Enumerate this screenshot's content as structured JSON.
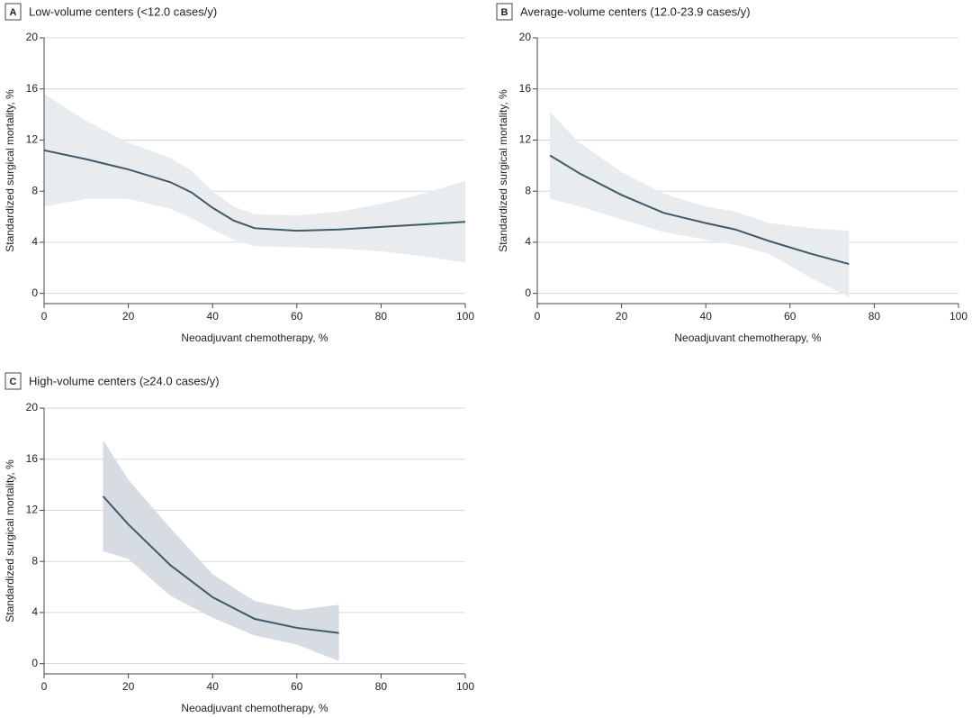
{
  "chart_data": [
    {
      "type": "line",
      "label": "A",
      "title": "Low-volume centers (<12.0 cases/y)",
      "xlabel": "Neoadjuvant chemotherapy, %",
      "ylabel": "Standardized surgical mortality, %",
      "x": [
        0,
        10,
        20,
        30,
        35,
        40,
        45,
        50,
        60,
        70,
        80,
        90,
        100
      ],
      "series": [
        {
          "color": "#3e5a6b",
          "band_color": "#e9ecee",
          "values": [
            11.2,
            10.5,
            9.7,
            8.7,
            7.9,
            6.7,
            5.7,
            5.1,
            4.9,
            5.0,
            5.2,
            5.4,
            5.6
          ],
          "upper": [
            15.6,
            13.5,
            11.8,
            10.6,
            9.6,
            8.0,
            6.8,
            6.2,
            6.1,
            6.4,
            7.0,
            7.8,
            8.8
          ],
          "lower": [
            6.8,
            7.4,
            7.4,
            6.6,
            5.9,
            5.0,
            4.2,
            3.7,
            3.6,
            3.5,
            3.3,
            2.9,
            2.4
          ]
        }
      ],
      "xlim": [
        0,
        100
      ],
      "ylim": [
        -0.8,
        20
      ],
      "xticks": [
        0,
        20,
        40,
        60,
        80,
        100
      ],
      "yticks": [
        0,
        4,
        8,
        12,
        16,
        20
      ],
      "grid": true
    },
    {
      "type": "line",
      "label": "B",
      "title": "Average-volume centers (12.0-23.9 cases/y)",
      "xlabel": "Neoadjuvant chemotherapy, %",
      "ylabel": "Standardized surgical mortality, %",
      "x": [
        3,
        10,
        20,
        30,
        40,
        47,
        55,
        65,
        74
      ],
      "series": [
        {
          "color": "#3e5a6b",
          "band_color": "#e9ecee",
          "values": [
            10.8,
            9.4,
            7.7,
            6.3,
            5.5,
            5.0,
            4.1,
            3.1,
            2.3
          ],
          "upper": [
            14.2,
            11.8,
            9.5,
            7.8,
            6.8,
            6.4,
            5.5,
            5.1,
            4.9
          ],
          "lower": [
            7.4,
            6.8,
            5.8,
            4.8,
            4.2,
            3.8,
            3.1,
            1.2,
            -0.3
          ]
        }
      ],
      "xlim": [
        0,
        100
      ],
      "ylim": [
        -0.8,
        20
      ],
      "xticks": [
        0,
        20,
        40,
        60,
        80,
        100
      ],
      "yticks": [
        0,
        4,
        8,
        12,
        16,
        20
      ],
      "grid": true
    },
    {
      "type": "line",
      "label": "C",
      "title": "High-volume centers (≥24.0 cases/y)",
      "xlabel": "Neoadjuvant chemotherapy, %",
      "ylabel": "Standardized surgical mortality, %",
      "x": [
        14,
        20,
        30,
        40,
        50,
        60,
        70
      ],
      "series": [
        {
          "color": "#3e5a6b",
          "band_color": "#d6dce1",
          "values": [
            13.1,
            10.9,
            7.7,
            5.2,
            3.5,
            2.8,
            2.4
          ],
          "upper": [
            17.5,
            14.4,
            10.6,
            7.0,
            4.9,
            4.2,
            4.6
          ],
          "lower": [
            8.8,
            8.2,
            5.3,
            3.6,
            2.2,
            1.5,
            0.2
          ]
        }
      ],
      "xlim": [
        0,
        100
      ],
      "ylim": [
        -0.8,
        20
      ],
      "xticks": [
        0,
        20,
        40,
        60,
        80,
        100
      ],
      "yticks": [
        0,
        4,
        8,
        12,
        16,
        20
      ],
      "grid": true
    }
  ]
}
